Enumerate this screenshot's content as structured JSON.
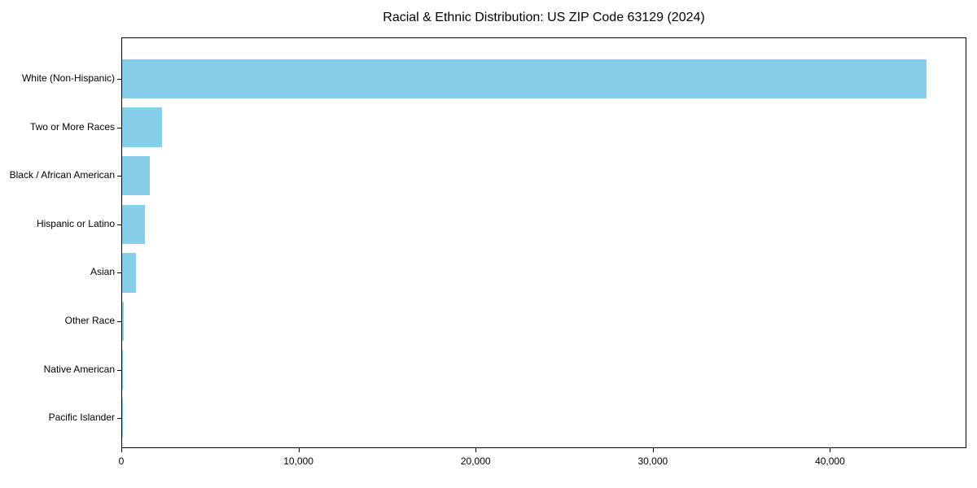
{
  "title": "Racial & Ethnic Distribution: US ZIP Code 63129 (2024)",
  "colors": {
    "bar": "#87CEEB",
    "axis": "#000000",
    "text": "#000000",
    "background": "#ffffff"
  },
  "chart_data": {
    "type": "bar",
    "orientation": "horizontal",
    "title": "Racial & Ethnic Distribution: US ZIP Code 63129 (2024)",
    "categories": [
      "White (Non-Hispanic)",
      "Two or More Races",
      "Black / African American",
      "Hispanic or Latino",
      "Asian",
      "Other Race",
      "Native American",
      "Pacific Islander"
    ],
    "values": [
      45400,
      2250,
      1550,
      1300,
      800,
      80,
      30,
      15
    ],
    "xlabel": "",
    "ylabel": "",
    "xlim": [
      0,
      47700
    ],
    "x_ticks": [
      0,
      10000,
      20000,
      30000,
      40000
    ],
    "x_tick_labels": [
      "0",
      "10,000",
      "20,000",
      "30,000",
      "40,000"
    ],
    "bar_color": "#87CEEB",
    "grid": false,
    "legend": null
  }
}
